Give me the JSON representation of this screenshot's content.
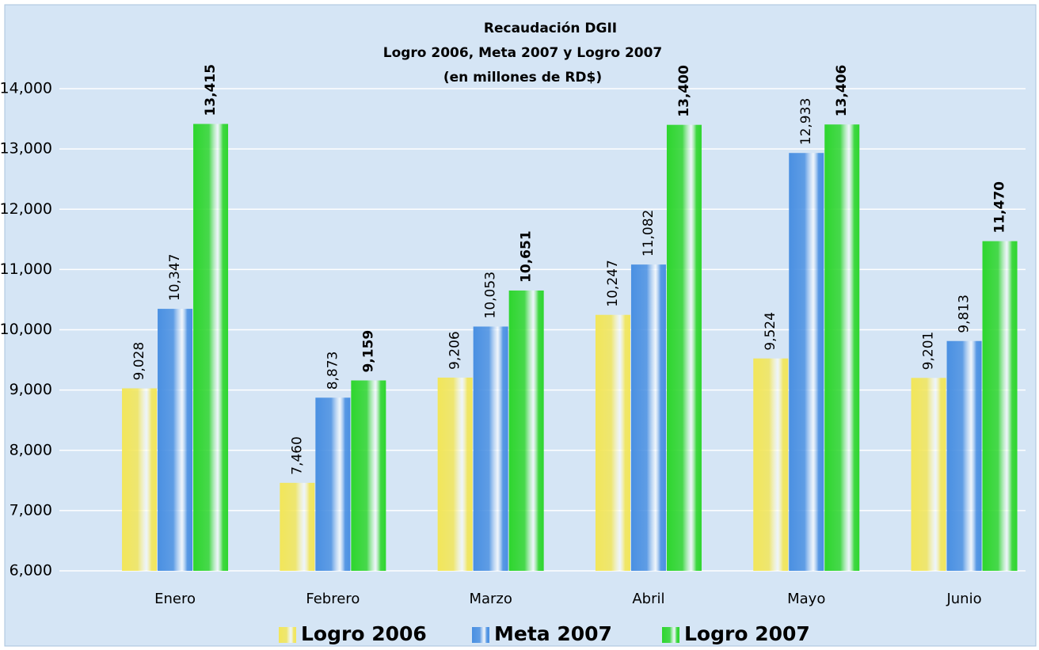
{
  "chart_data": {
    "type": "bar",
    "title": [
      "Recaudación DGII",
      "Logro 2006, Meta 2007 y Logro 2007",
      "(en millones de RD$)"
    ],
    "categories": [
      "Enero",
      "Febrero",
      "Marzo",
      "Abril",
      "Mayo",
      "Junio"
    ],
    "series": [
      {
        "name": "Logro 2006",
        "color": "#f2e65a",
        "values": [
          9028,
          7460,
          9206,
          10247,
          9524,
          9201
        ],
        "value_labels": [
          "9,028",
          "7,460",
          "9,206",
          "10,247",
          "9,524",
          "9,201"
        ]
      },
      {
        "name": "Meta 2007",
        "color": "#4a90e2",
        "values": [
          10347,
          8873,
          10053,
          11082,
          12933,
          9813
        ],
        "value_labels": [
          "10,347",
          "8,873",
          "10,053",
          "11,082",
          "12,933",
          "9,813"
        ]
      },
      {
        "name": "Logro 2007",
        "color": "#2ed62e",
        "values": [
          13415,
          9159,
          10651,
          13400,
          13406,
          11470
        ],
        "value_labels": [
          "13,415",
          "9,159",
          "10,651",
          "13,400",
          "13,406",
          "11,470"
        ]
      }
    ],
    "ylim": [
      6000,
      14000
    ],
    "yticks": [
      {
        "value": 6000,
        "label": "6,000"
      },
      {
        "value": 7000,
        "label": "7,000"
      },
      {
        "value": 8000,
        "label": "8,000"
      },
      {
        "value": 9000,
        "label": "9,000"
      },
      {
        "value": 10000,
        "label": "10,000"
      },
      {
        "value": 11000,
        "label": "11,000"
      },
      {
        "value": 12000,
        "label": "12,000"
      },
      {
        "value": 13000,
        "label": "13,000"
      },
      {
        "value": 14000,
        "label": "14,000"
      }
    ],
    "grid": true,
    "legend": "bottom"
  }
}
